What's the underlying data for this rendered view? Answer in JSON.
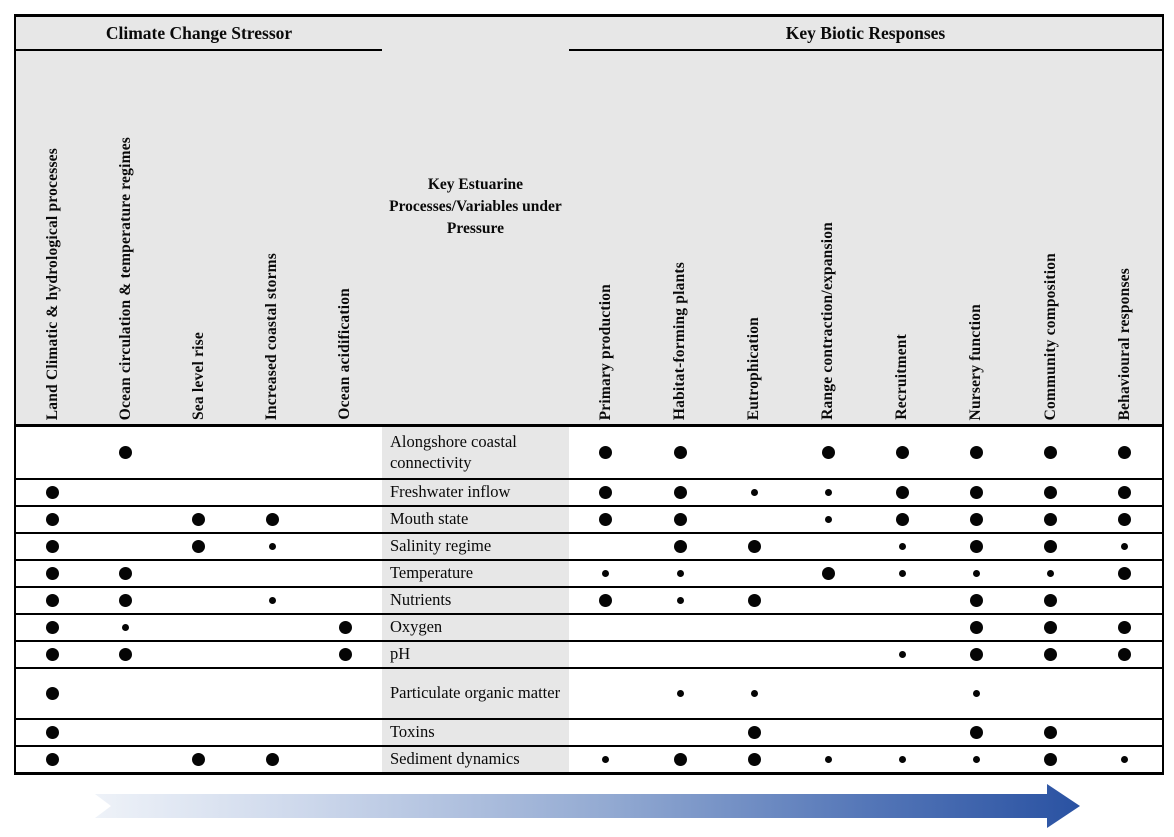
{
  "sections": {
    "stressor": "Climate Change Stressor",
    "biotic": "Key Biotic Responses"
  },
  "middle_header": "Key Estuarine Processes/Variables under Pressure",
  "stressor_columns": [
    "Land Climatic & hydrological processes",
    "Ocean circulation & temperature regimes",
    "Sea level rise",
    "Increased coastal storms",
    "Ocean acidification"
  ],
  "biotic_columns": [
    "Primary production",
    "Habitat-forming plants",
    "Eutrophication",
    "Range contraction/expansion",
    "Recruitment",
    "Nursery function",
    "Community composition",
    "Behavioural responses"
  ],
  "dot_legend": {
    "2": "large dot",
    "1": "small dot",
    "0": "no link"
  },
  "rows": [
    {
      "label": "Alongshore coastal connectivity",
      "cells": [
        0,
        2,
        0,
        0,
        0,
        2,
        2,
        0,
        2,
        2,
        2,
        2,
        2
      ]
    },
    {
      "label": "Freshwater inflow",
      "cells": [
        2,
        0,
        0,
        0,
        0,
        2,
        2,
        1,
        1,
        2,
        2,
        2,
        2
      ]
    },
    {
      "label": "Mouth state",
      "cells": [
        2,
        0,
        2,
        2,
        0,
        2,
        2,
        0,
        1,
        2,
        2,
        2,
        2
      ]
    },
    {
      "label": "Salinity regime",
      "cells": [
        2,
        0,
        2,
        1,
        0,
        0,
        2,
        2,
        0,
        1,
        2,
        2,
        1
      ]
    },
    {
      "label": "Temperature",
      "cells": [
        2,
        2,
        0,
        0,
        0,
        1,
        1,
        0,
        2,
        1,
        1,
        1,
        2
      ]
    },
    {
      "label": "Nutrients",
      "cells": [
        2,
        2,
        0,
        1,
        0,
        2,
        1,
        2,
        0,
        0,
        2,
        2,
        0
      ]
    },
    {
      "label": "Oxygen",
      "cells": [
        2,
        1,
        0,
        0,
        2,
        0,
        0,
        0,
        0,
        0,
        2,
        2,
        2
      ]
    },
    {
      "label": "pH",
      "cells": [
        2,
        2,
        0,
        0,
        2,
        0,
        0,
        0,
        0,
        1,
        2,
        2,
        2
      ]
    },
    {
      "label": "Particulate organic matter",
      "cells": [
        2,
        0,
        0,
        0,
        0,
        0,
        1,
        1,
        0,
        0,
        1,
        0,
        0
      ]
    },
    {
      "label": "Toxins",
      "cells": [
        2,
        0,
        0,
        0,
        0,
        0,
        0,
        2,
        0,
        0,
        2,
        2,
        0
      ]
    },
    {
      "label": "Sediment dynamics",
      "cells": [
        2,
        0,
        2,
        2,
        0,
        1,
        2,
        2,
        1,
        1,
        1,
        2,
        1
      ]
    }
  ],
  "colors": {
    "header_background": "#e7e7e7",
    "dot": "#050505",
    "arrow_gradient_start": "#eef2f8",
    "arrow_gradient_end": "#2a52a2"
  }
}
